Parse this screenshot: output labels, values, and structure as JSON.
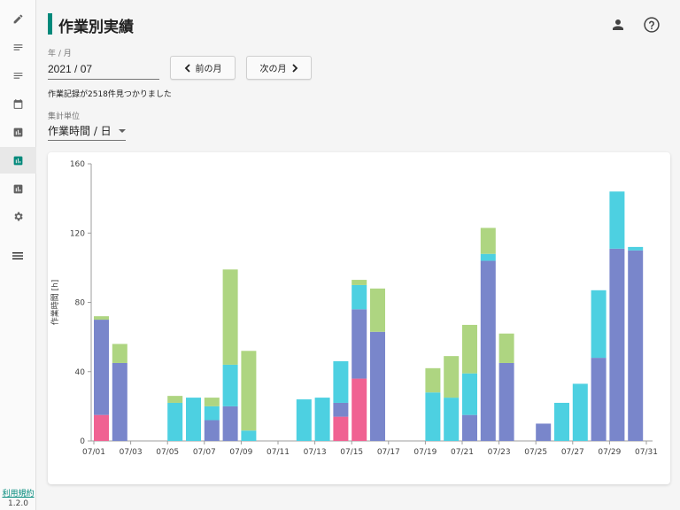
{
  "sidebar": {
    "items": [
      {
        "icon": "pencil-icon"
      },
      {
        "icon": "list-lines-icon"
      },
      {
        "icon": "list-lines-icon"
      },
      {
        "icon": "calendar-icon"
      },
      {
        "icon": "report-icon"
      },
      {
        "icon": "bar-chart-icon",
        "active": true
      },
      {
        "icon": "report-icon"
      },
      {
        "icon": "gear-icon"
      },
      {
        "icon": "menu-icon"
      }
    ],
    "footer_link": "利用規約",
    "version": "1.2.0"
  },
  "header": {
    "title": "作業別実績",
    "accent_color": "#00897b",
    "icons": [
      "user-icon",
      "help-icon"
    ]
  },
  "month_field": {
    "label": "年 / 月",
    "value": "2021 / 07"
  },
  "buttons": {
    "prev_month": "前の月",
    "next_month": "次の月"
  },
  "record_count_text": "作業記録が2518件見つかりました",
  "unit_select": {
    "label": "集計単位",
    "value": "作業時間 / 日"
  },
  "chart_data": {
    "type": "bar",
    "stacked": true,
    "ylabel": "作業時間 [h]",
    "ylim": [
      0,
      160
    ],
    "yticks": [
      0,
      40,
      80,
      120,
      160
    ],
    "grid": false,
    "xtick_labels": [
      "07/01",
      "07/03",
      "07/05",
      "07/07",
      "07/09",
      "07/11",
      "07/13",
      "07/15",
      "07/17",
      "07/19",
      "07/21",
      "07/23",
      "07/25",
      "07/27",
      "07/29",
      "07/31"
    ],
    "categories": [
      "07/01",
      "07/02",
      "07/03",
      "07/04",
      "07/05",
      "07/06",
      "07/07",
      "07/08",
      "07/09",
      "07/10",
      "07/11",
      "07/12",
      "07/13",
      "07/14",
      "07/15",
      "07/16",
      "07/17",
      "07/18",
      "07/19",
      "07/20",
      "07/21",
      "07/22",
      "07/23",
      "07/24",
      "07/25",
      "07/26",
      "07/27",
      "07/28",
      "07/29",
      "07/30"
    ],
    "series": [
      {
        "color": "#f06292",
        "values": [
          15,
          0,
          0,
          0,
          0,
          0,
          0,
          0,
          0,
          0,
          0,
          0,
          0,
          14,
          36,
          0,
          0,
          0,
          0,
          0,
          0,
          0,
          0,
          0,
          0,
          0,
          0,
          0,
          0,
          0
        ]
      },
      {
        "color": "#7986cb",
        "values": [
          55,
          45,
          0,
          0,
          0,
          0,
          12,
          20,
          0,
          0,
          0,
          0,
          0,
          8,
          40,
          63,
          0,
          0,
          0,
          0,
          15,
          104,
          45,
          0,
          10,
          0,
          0,
          48,
          111,
          110
        ]
      },
      {
        "color": "#4dd0e1",
        "values": [
          0,
          0,
          0,
          0,
          22,
          25,
          8,
          24,
          6,
          0,
          0,
          24,
          25,
          24,
          14,
          0,
          0,
          0,
          28,
          25,
          24,
          4,
          0,
          0,
          0,
          22,
          33,
          39,
          33,
          2
        ]
      },
      {
        "color": "#aed581",
        "values": [
          2,
          11,
          0,
          0,
          4,
          0,
          5,
          55,
          46,
          0,
          0,
          0,
          0,
          0,
          3,
          25,
          0,
          0,
          14,
          24,
          28,
          15,
          17,
          0,
          0,
          0,
          0,
          0,
          0,
          0
        ]
      }
    ]
  }
}
